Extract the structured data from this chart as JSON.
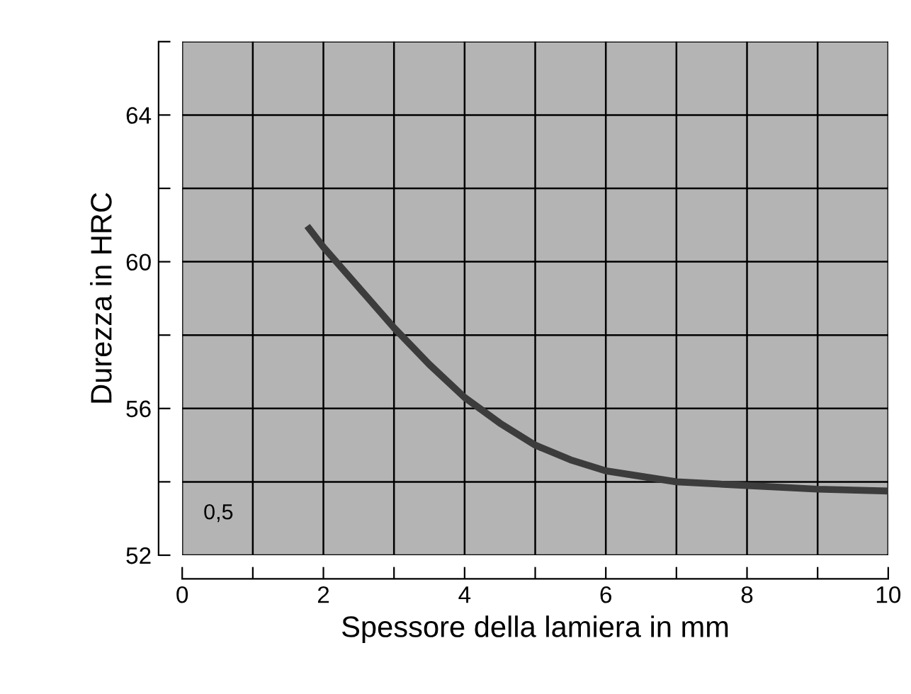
{
  "chart_data": {
    "type": "line",
    "xlabel": "Spessore della lamiera in mm",
    "ylabel": "Durezza in HRC",
    "x": [
      1.8,
      2,
      2.5,
      3,
      3.5,
      4,
      4.5,
      5,
      5.5,
      6,
      7,
      8,
      9,
      10
    ],
    "series": [
      {
        "color": "#3c3c3c",
        "values": [
          60.9,
          60.4,
          59.3,
          58.2,
          57.2,
          56.3,
          55.6,
          55.0,
          54.6,
          54.3,
          54.0,
          53.9,
          53.8,
          53.75
        ]
      }
    ],
    "xlim": [
      0,
      10
    ],
    "ylim": [
      52,
      66
    ],
    "xticks": [
      0,
      {
        "value": 1,
        "label": null
      },
      2,
      {
        "value": 3,
        "label": null
      },
      4,
      {
        "value": 5,
        "label": null
      },
      6,
      {
        "value": 7,
        "label": null
      },
      8,
      {
        "value": 9,
        "label": null
      },
      10
    ],
    "yticks": [
      52,
      {
        "value": 54,
        "label": null
      },
      56,
      {
        "value": 58,
        "label": null
      },
      60,
      {
        "value": 62,
        "label": null
      },
      64,
      {
        "value": 66,
        "label": null
      }
    ],
    "grid": true,
    "marker": "none",
    "line_style": "solid",
    "annotations": [
      "0,5"
    ]
  }
}
